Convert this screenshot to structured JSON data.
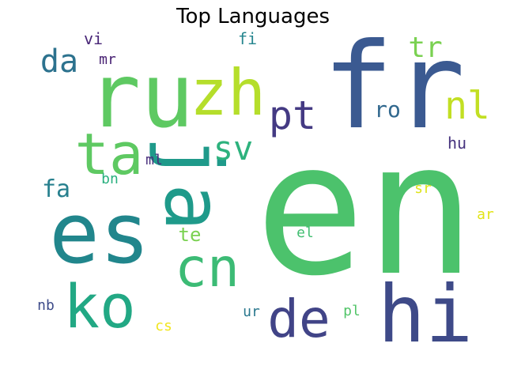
{
  "title": "Top Languages",
  "words": [
    {
      "text": "en",
      "color": "#4cc26c"
    },
    {
      "text": "fr",
      "color": "#3b5a91"
    },
    {
      "text": "hi",
      "color": "#3e4a88"
    },
    {
      "text": "ru",
      "color": "#5ec962"
    },
    {
      "text": "es",
      "color": "#21868c"
    },
    {
      "text": "zh",
      "color": "#b5de2b"
    },
    {
      "text": "ja",
      "color": "#1f9a8a"
    },
    {
      "text": "ta",
      "color": "#5ec962"
    },
    {
      "text": "ko",
      "color": "#22a884"
    },
    {
      "text": "cn",
      "color": "#3cbb75"
    },
    {
      "text": "de",
      "color": "#414487"
    },
    {
      "text": "pt",
      "color": "#443a83"
    },
    {
      "text": "nl",
      "color": "#c2df23"
    },
    {
      "text": "sv",
      "color": "#2db27d"
    },
    {
      "text": "da",
      "color": "#2c728e"
    },
    {
      "text": "tr",
      "color": "#7ad151"
    },
    {
      "text": "ro",
      "color": "#31688e"
    },
    {
      "text": "fa",
      "color": "#27808e"
    },
    {
      "text": "te",
      "color": "#7ad151"
    },
    {
      "text": "hu",
      "color": "#46337e"
    },
    {
      "text": "vi",
      "color": "#482677"
    },
    {
      "text": "fi",
      "color": "#25858e"
    },
    {
      "text": "mr",
      "color": "#482173"
    },
    {
      "text": "ml",
      "color": "#472d7b"
    },
    {
      "text": "bn",
      "color": "#2ab07f"
    },
    {
      "text": "sr",
      "color": "#dde318"
    },
    {
      "text": "ar",
      "color": "#e2e418"
    },
    {
      "text": "el",
      "color": "#42be71"
    },
    {
      "text": "nb",
      "color": "#3e4c8a"
    },
    {
      "text": "ur",
      "color": "#2a788e"
    },
    {
      "text": "pl",
      "color": "#52c569"
    },
    {
      "text": "cs",
      "color": "#f1e51d"
    }
  ]
}
